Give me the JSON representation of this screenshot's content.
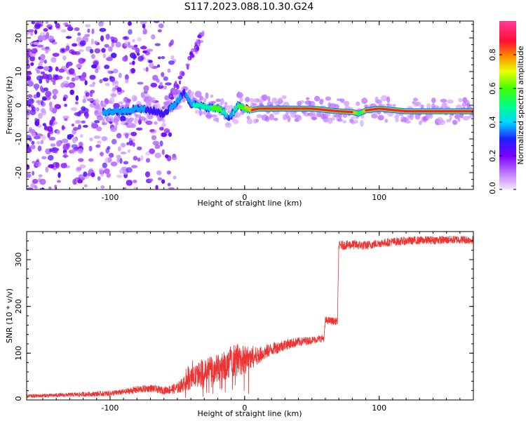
{
  "title": "S117.2023.088.10.30.G24",
  "chart_data": [
    {
      "type": "heatmap",
      "title": "S117.2023.088.10.30.G24",
      "xlabel": "Height of straight line (km)",
      "ylabel": "Frequency (Hz)",
      "xlim": [
        -162,
        170
      ],
      "ylim": [
        -25,
        25
      ],
      "xticks": [
        -100,
        0,
        100
      ],
      "xtick_labels": [
        "-100",
        "0",
        "100"
      ],
      "yticks": [
        -20,
        -10,
        0,
        10,
        20
      ],
      "ytick_labels": [
        "-20",
        "-10",
        "0",
        "10",
        "20"
      ],
      "grid": false,
      "ridge": {
        "description_height_km": [
          -100,
          -90,
          -80,
          -70,
          -60,
          -50,
          -45,
          -40,
          -30,
          -20,
          -15,
          -12,
          -10,
          -5,
          0,
          5,
          10,
          20,
          50,
          70,
          80,
          85,
          90,
          100,
          120,
          150,
          170
        ],
        "frequency_hz": [
          -2,
          -1.8,
          -1,
          -1.5,
          -2.5,
          1,
          4,
          0.5,
          -0.5,
          -1,
          -2,
          -4,
          -3,
          0,
          -1,
          -1.5,
          -1,
          -1,
          -1,
          -1.8,
          -2,
          -2.5,
          -1.5,
          -1,
          -1.8,
          -1.8,
          -1.8
        ],
        "peak_amplitude": [
          0.35,
          0.4,
          0.35,
          0.3,
          0.3,
          0.35,
          0.3,
          0.4,
          0.5,
          0.6,
          0.5,
          0.3,
          0.35,
          0.55,
          0.7,
          0.85,
          0.9,
          0.9,
          0.88,
          0.9,
          0.9,
          0.45,
          0.85,
          0.88,
          0.9,
          0.9,
          0.88
        ]
      },
      "colorbar": {
        "label": "Normalized spectral amplitude",
        "range": [
          0,
          1
        ],
        "ticks": [
          0,
          0.2,
          0.4,
          0.6,
          0.8
        ],
        "tick_labels": [
          "0.0",
          "0.2",
          "0.4",
          "0.6",
          "0.8"
        ],
        "colormap": "rainbow (purple-blue-cyan-green-yellow-red-pink)"
      }
    },
    {
      "type": "line",
      "xlabel": "Height of straight line (km)",
      "ylabel": "SNR (10 * v/v)",
      "xlim": [
        -162,
        170
      ],
      "ylim": [
        0,
        360
      ],
      "xticks": [
        -100,
        0,
        100
      ],
      "xtick_labels": [
        "-100",
        "0",
        "100"
      ],
      "yticks": [
        0,
        100,
        200,
        300
      ],
      "ytick_labels": [
        "0",
        "100",
        "200",
        "300"
      ],
      "grid": false,
      "series": [
        {
          "color": "#ee3333",
          "x": [
            -162,
            -140,
            -120,
            -100,
            -90,
            -80,
            -70,
            -60,
            -50,
            -40,
            -30,
            -20,
            -10,
            0,
            10,
            20,
            30,
            40,
            50,
            59,
            60,
            69,
            70,
            80,
            90,
            100,
            110,
            120,
            130,
            140,
            150,
            160,
            170
          ],
          "y": [
            8,
            10,
            12,
            14,
            17,
            22,
            25,
            20,
            25,
            45,
            60,
            68,
            78,
            85,
            95,
            108,
            118,
            124,
            128,
            132,
            170,
            168,
            330,
            332,
            330,
            335,
            338,
            340,
            341,
            342,
            342,
            343,
            342
          ],
          "noise": [
            4,
            4,
            5,
            6,
            6,
            8,
            8,
            8,
            12,
            22,
            28,
            30,
            32,
            30,
            18,
            14,
            12,
            10,
            8,
            8,
            8,
            8,
            10,
            10,
            10,
            9,
            9,
            9,
            9,
            9,
            9,
            9,
            9
          ]
        }
      ]
    }
  ]
}
